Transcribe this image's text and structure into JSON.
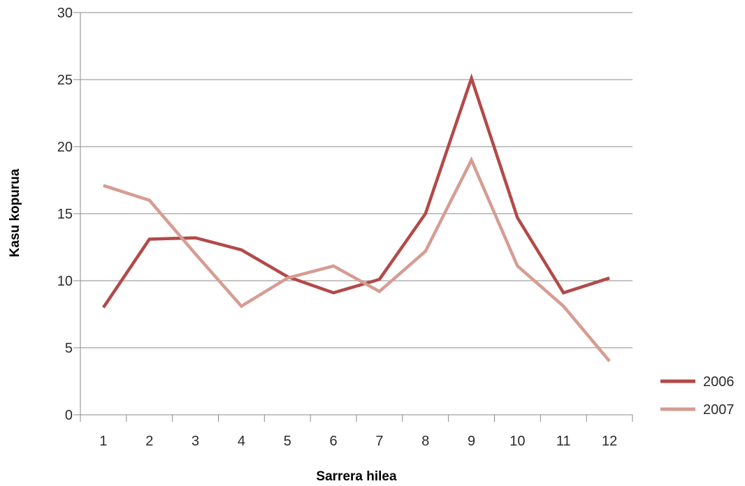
{
  "chart_data": {
    "type": "line",
    "title": "",
    "xlabel": "Sarrera hilea",
    "ylabel": "Kasu kopurua",
    "categories": [
      "1",
      "2",
      "3",
      "4",
      "5",
      "6",
      "7",
      "8",
      "9",
      "10",
      "11",
      "12"
    ],
    "ylim": [
      0,
      30
    ],
    "yticks": [
      0,
      5,
      10,
      15,
      20,
      25,
      30
    ],
    "grid": "horizontal",
    "legend_position": "right-bottom",
    "series": [
      {
        "name": "2006",
        "color": "#b24a48",
        "values": [
          8,
          13.1,
          13.2,
          12.3,
          10.3,
          9.1,
          10.1,
          15,
          25.1,
          14.7,
          9.1,
          10.2
        ]
      },
      {
        "name": "2007",
        "color": "#d69c92",
        "values": [
          17.1,
          16,
          12,
          8.1,
          10.2,
          11.1,
          9.2,
          12.2,
          19,
          11.1,
          8.1,
          4
        ]
      }
    ]
  }
}
